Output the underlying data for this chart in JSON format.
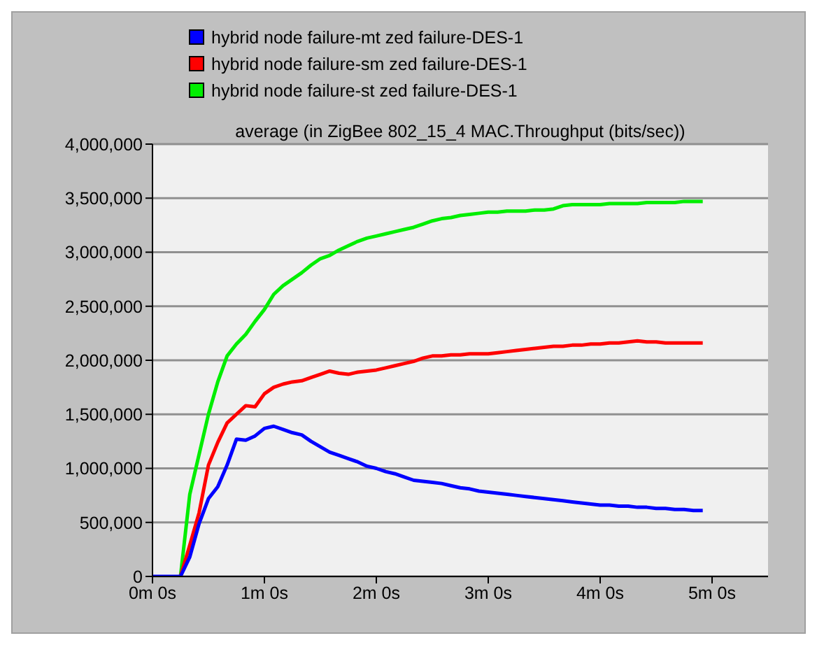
{
  "chart_data": {
    "type": "line",
    "title": "average (in ZigBee 802_15_4 MAC.Throughput (bits/sec))",
    "categories": [
      "0m 0s",
      null,
      null,
      null,
      null,
      null,
      null,
      null,
      null,
      null,
      null,
      null,
      "1m 0s",
      null,
      null,
      null,
      null,
      null,
      null,
      null,
      null,
      null,
      null,
      null,
      "2m 0s",
      null,
      null,
      null,
      null,
      null,
      null,
      null,
      null,
      null,
      null,
      null,
      "3m 0s",
      null,
      null,
      null,
      null,
      null,
      null,
      null,
      null,
      null,
      null,
      null,
      "4m 0s",
      null,
      null,
      null,
      null,
      null,
      null,
      null,
      null,
      null,
      null,
      null,
      "5m 0s",
      null,
      null,
      null,
      null,
      null,
      null
    ],
    "ylim": [
      0,
      4000000
    ],
    "yticks": [
      0,
      {
        "value": 500000,
        "label": "500,000"
      },
      {
        "value": 1000000,
        "label": "1,000,000"
      },
      {
        "value": 1500000,
        "label": "1,500,000"
      },
      {
        "value": 2000000,
        "label": "2,000,000"
      },
      {
        "value": 2500000,
        "label": "2,500,000"
      },
      {
        "value": 3000000,
        "label": "3,000,000"
      },
      {
        "value": 3500000,
        "label": "3,500,000"
      },
      {
        "value": 4000000,
        "label": "4,000,000"
      }
    ],
    "grid": "y",
    "legend": "top",
    "marker": "none",
    "line_style": "solid",
    "series": [
      {
        "name": "hybrid node failure-mt zed failure-DES-1",
        "color": "#0000ff",
        "values": [
          0,
          0,
          0,
          0,
          180000,
          490000,
          720000,
          830000,
          1030000,
          1270000,
          1260000,
          1300000,
          1370000,
          1390000,
          1360000,
          1330000,
          1310000,
          1250000,
          1200000,
          1150000,
          1120000,
          1090000,
          1060000,
          1020000,
          1000000,
          970000,
          950000,
          920000,
          890000,
          880000,
          870000,
          860000,
          840000,
          820000,
          810000,
          790000,
          780000,
          770000,
          760000,
          750000,
          740000,
          730000,
          720000,
          710000,
          700000,
          690000,
          680000,
          670000,
          660000,
          660000,
          650000,
          650000,
          640000,
          640000,
          630000,
          630000,
          620000,
          620000,
          610000,
          610000,
          null,
          null,
          null,
          null,
          null,
          null,
          null
        ]
      },
      {
        "name": "hybrid node failure-sm zed failure-DES-1",
        "color": "#ff0000",
        "values": [
          null,
          null,
          null,
          0,
          290000,
          590000,
          1030000,
          1240000,
          1420000,
          1500000,
          1580000,
          1570000,
          1690000,
          1750000,
          1780000,
          1800000,
          1810000,
          1840000,
          1870000,
          1900000,
          1880000,
          1870000,
          1890000,
          1900000,
          1910000,
          1930000,
          1950000,
          1970000,
          1990000,
          2020000,
          2040000,
          2040000,
          2050000,
          2050000,
          2060000,
          2060000,
          2060000,
          2070000,
          2080000,
          2090000,
          2100000,
          2110000,
          2120000,
          2130000,
          2130000,
          2140000,
          2140000,
          2150000,
          2150000,
          2160000,
          2160000,
          2170000,
          2180000,
          2170000,
          2170000,
          2160000,
          2160000,
          2160000,
          2160000,
          2160000,
          null,
          null,
          null,
          null,
          null,
          null,
          null
        ]
      },
      {
        "name": "hybrid node failure-st zed failure-DES-1",
        "color": "#00ee00",
        "values": [
          null,
          null,
          null,
          0,
          760000,
          1130000,
          1500000,
          1800000,
          2040000,
          2150000,
          2240000,
          2360000,
          2470000,
          2610000,
          2690000,
          2750000,
          2810000,
          2880000,
          2940000,
          2970000,
          3020000,
          3060000,
          3100000,
          3130000,
          3150000,
          3170000,
          3190000,
          3210000,
          3230000,
          3260000,
          3290000,
          3310000,
          3320000,
          3340000,
          3350000,
          3360000,
          3370000,
          3370000,
          3380000,
          3380000,
          3380000,
          3390000,
          3390000,
          3400000,
          3430000,
          3440000,
          3440000,
          3440000,
          3440000,
          3450000,
          3450000,
          3450000,
          3450000,
          3460000,
          3460000,
          3460000,
          3460000,
          3470000,
          3470000,
          3470000,
          null,
          null,
          null,
          null,
          null,
          null,
          null
        ]
      }
    ]
  }
}
